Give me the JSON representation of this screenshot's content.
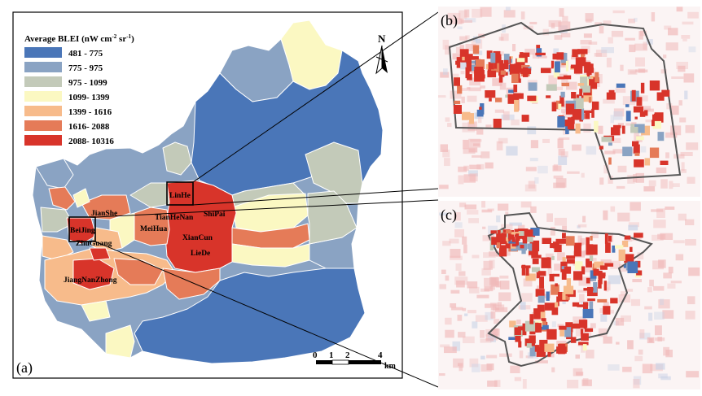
{
  "panel_labels": {
    "a": "(a)",
    "b": "(b)",
    "c": "(c)"
  },
  "legend": {
    "title": "Average BLEI (nW cm",
    "title_sup1": "-2",
    "title_mid": " sr",
    "title_sup2": "-1",
    "title_end": ")",
    "classes": [
      {
        "range": "481 - 775",
        "color": "#4a76b8"
      },
      {
        "range": "775 - 975",
        "color": "#8aa3c3"
      },
      {
        "range": "975 - 1099",
        "color": "#c3cab9"
      },
      {
        "range": "1099- 1399",
        "color": "#fbf8c2"
      },
      {
        "range": "1399 - 1616",
        "color": "#f7bb8b"
      },
      {
        "range": "1616- 2088",
        "color": "#e57b58"
      },
      {
        "range": "2088- 10316",
        "color": "#d8342a"
      }
    ]
  },
  "north_arrow": {
    "label": "N"
  },
  "scale_bar": {
    "ticks": [
      "0",
      "1",
      "2",
      "4"
    ],
    "unit": "km"
  },
  "places": {
    "linhe": "LinHe",
    "tianhenan": "TianHeNan",
    "shipai": "ShiPai",
    "meihua": "MeiHua",
    "xiancun": "XianCun",
    "liede": "LieDe",
    "jianshe": "JianShe",
    "beijing": "BeiJing",
    "zhuguang": "ZhuGuang",
    "jiangnanzhong": "JiangNanZhong"
  }
}
